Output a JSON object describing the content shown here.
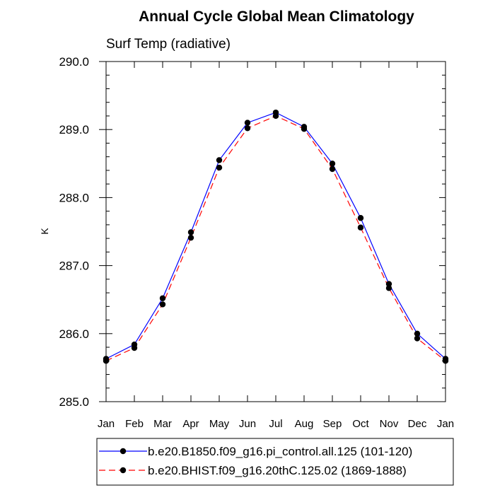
{
  "chart_data": {
    "type": "line",
    "title": "Annual Cycle Global Mean Climatology",
    "subtitle": "Surf Temp (radiative)",
    "xlabel": "",
    "ylabel": "K",
    "categories": [
      "Jan",
      "Feb",
      "Mar",
      "Apr",
      "May",
      "Jun",
      "Jul",
      "Aug",
      "Sep",
      "Oct",
      "Nov",
      "Dec",
      "Jan"
    ],
    "y_ticks": [
      "285.0",
      "286.0",
      "287.0",
      "288.0",
      "289.0",
      "290.0"
    ],
    "ylim": [
      285.0,
      290.0
    ],
    "grid": false,
    "legend_position": "bottom",
    "series": [
      {
        "name": "b.e20.B1850.f09_g16.pi_control.all.125 (101-120)",
        "color": "#0000ff",
        "dash": "solid",
        "values": [
          285.63,
          285.84,
          286.52,
          287.49,
          288.55,
          289.1,
          289.25,
          289.04,
          288.5,
          287.7,
          286.73,
          286.0,
          285.63
        ]
      },
      {
        "name": "b.e20.BHIST.f09_g16.20thC.125.02 (1869-1888)",
        "color": "#ff0000",
        "dash": "dashed",
        "values": [
          285.6,
          285.79,
          286.43,
          287.41,
          288.44,
          289.02,
          289.2,
          289.01,
          288.42,
          287.56,
          286.67,
          285.93,
          285.6
        ]
      }
    ]
  }
}
